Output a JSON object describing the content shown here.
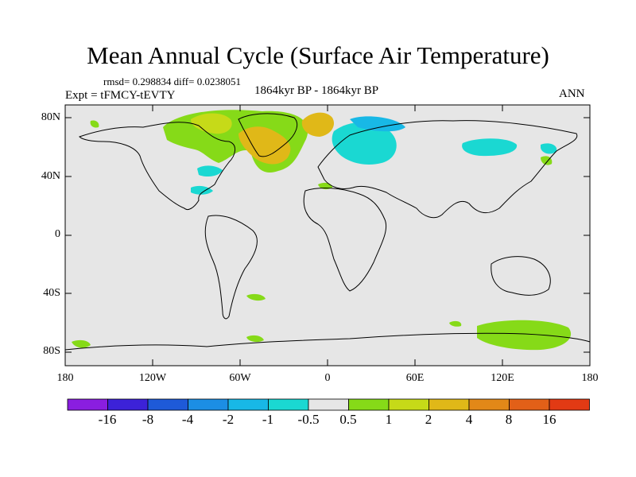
{
  "title": "Mean Annual Cycle (Surface Air Temperature)",
  "stats": "rmsd= 0.298834 diff= 0.0238051",
  "experiment": "Expt = tFMCY-tEVTY",
  "period": "1864kyr BP - 1864kyr BP",
  "season": "ANN",
  "axes": {
    "lat_ticks": [
      "80N",
      "40N",
      "0",
      "40S",
      "80S"
    ],
    "lon_ticks": [
      "180",
      "120W",
      "60W",
      "0",
      "60E",
      "120E",
      "180"
    ]
  },
  "colorbar": {
    "labels": [
      "-16",
      "-8",
      "-4",
      "-2",
      "-1",
      "-0.5",
      "0.5",
      "1",
      "2",
      "4",
      "8",
      "16"
    ],
    "colors": [
      "#8a1ee0",
      "#3c22d8",
      "#1e5ad8",
      "#1c8ee4",
      "#18b8e6",
      "#1ad8d2",
      "#e6e6e6",
      "#86da18",
      "#c6da18",
      "#e0b818",
      "#e28818",
      "#e26018",
      "#e23a14"
    ]
  },
  "colors": {
    "ocean_bg": "#e6e6e6",
    "green": "#86da18",
    "yellow_green": "#c6da18",
    "orange": "#e0b818",
    "cyan": "#1ad8d2",
    "light_blue": "#18b8e6"
  }
}
